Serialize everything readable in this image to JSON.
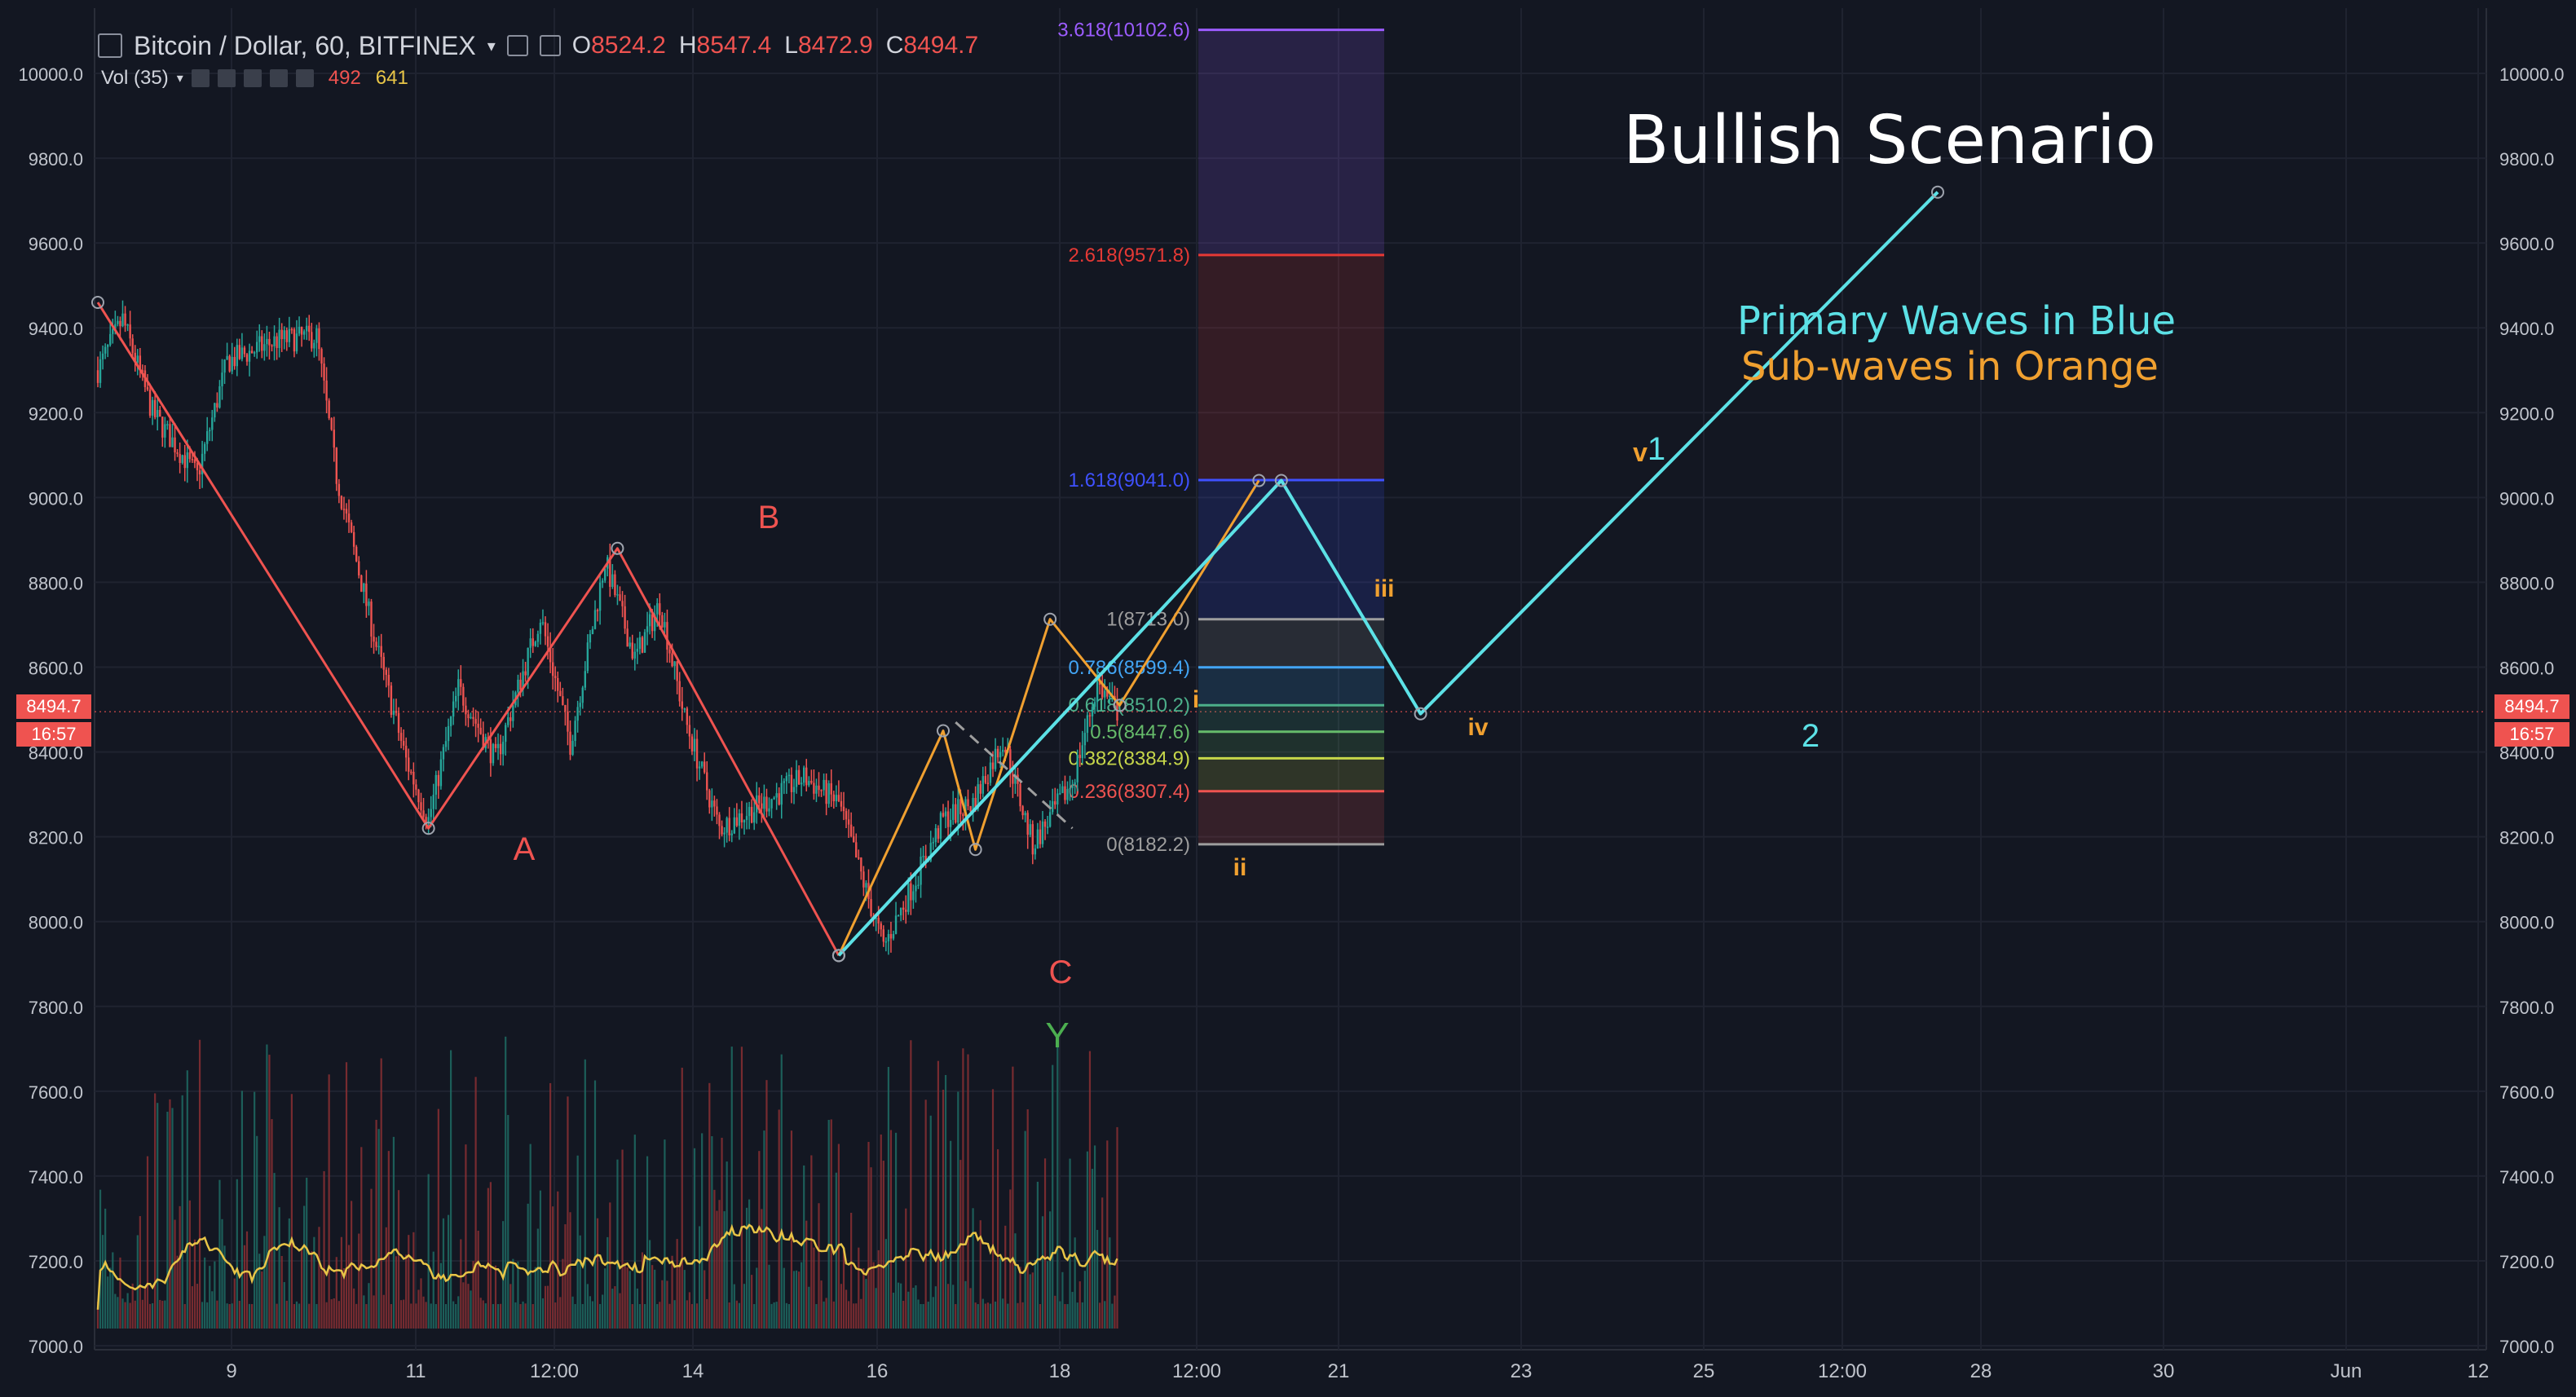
{
  "header": {
    "symbol": "Bitcoin / Dollar, 60, BITFINEX",
    "dropdown_icon": "chevron-down-icon",
    "open_label": "O",
    "open": "8524.2",
    "high_label": "H",
    "high": "8547.4",
    "low_label": "L",
    "low": "8472.9",
    "close_label": "C",
    "close": "8494.7",
    "volume_label": "Vol (35)",
    "volume_value": "492",
    "volume_ma": "641"
  },
  "price_tag": {
    "price": "8494.7",
    "countdown": "16:57"
  },
  "annotations": {
    "title": "Bullish Scenario",
    "primary_note": "Primary Waves in Blue",
    "sub_note": "Sub-waves in Orange",
    "wave_A": "A",
    "wave_B": "B",
    "wave_C": "C",
    "wave_Y": "Y",
    "wave_i": "i",
    "wave_ii": "ii",
    "wave_iii": "iii",
    "wave_iv": "iv",
    "wave_v": "v",
    "wave_1": "1",
    "wave_2": "2"
  },
  "colors": {
    "background": "#131722",
    "grid": "#2a2e39",
    "up": "#26a69a",
    "down": "#ef5350",
    "primary_wave": "#5ce1e6",
    "sub_wave": "#f0a030",
    "correction": "#ef5350",
    "volume_ma": "#e8c547",
    "text": "#d1d4dc"
  },
  "chart_data": {
    "type": "candlestick",
    "y_axis": {
      "range": [
        6960,
        10100
      ],
      "ticks": [
        "7000.0",
        "7200.0",
        "7400.0",
        "7600.0",
        "7800.0",
        "8000.0",
        "8200.0",
        "8400.0",
        "8600.0",
        "8800.0",
        "9000.0",
        "9200.0",
        "9400.0",
        "9600.0",
        "9800.0",
        "10000.0"
      ]
    },
    "x_axis": {
      "ticks": [
        "9",
        "11",
        "12:00",
        "14",
        "16",
        "18",
        "12:00",
        "21",
        "23",
        "25",
        "12:00",
        "28",
        "30",
        "Jun",
        "12"
      ]
    },
    "price_anchors": [
      {
        "t": 0,
        "p": 9300
      },
      {
        "t": 10,
        "p": 9420
      },
      {
        "t": 22,
        "p": 9200
      },
      {
        "t": 40,
        "p": 9050
      },
      {
        "t": 52,
        "p": 9320
      },
      {
        "t": 72,
        "p": 9370
      },
      {
        "t": 88,
        "p": 9380
      },
      {
        "t": 96,
        "p": 9050
      },
      {
        "t": 112,
        "p": 8650
      },
      {
        "t": 124,
        "p": 8380
      },
      {
        "t": 133,
        "p": 8240
      },
      {
        "t": 145,
        "p": 8550
      },
      {
        "t": 160,
        "p": 8380
      },
      {
        "t": 178,
        "p": 8720
      },
      {
        "t": 190,
        "p": 8420
      },
      {
        "t": 204,
        "p": 8850
      },
      {
        "t": 216,
        "p": 8620
      },
      {
        "t": 226,
        "p": 8750
      },
      {
        "t": 236,
        "p": 8480
      },
      {
        "t": 250,
        "p": 8220
      },
      {
        "t": 268,
        "p": 8280
      },
      {
        "t": 284,
        "p": 8340
      },
      {
        "t": 298,
        "p": 8280
      },
      {
        "t": 316,
        "p": 7940
      },
      {
        "t": 340,
        "p": 8240
      },
      {
        "t": 352,
        "p": 8280
      },
      {
        "t": 364,
        "p": 8430
      },
      {
        "t": 376,
        "p": 8180
      },
      {
        "t": 392,
        "p": 8330
      },
      {
        "t": 402,
        "p": 8560
      },
      {
        "t": 410,
        "p": 8495
      }
    ],
    "fibonacci": [
      {
        "label": "0(8182.2)",
        "ratio": "0",
        "value": 8182.2,
        "color": "#9e9e9e"
      },
      {
        "label": "0.236(8307.4)",
        "ratio": "0.236",
        "value": 8307.4,
        "color": "#ef5350"
      },
      {
        "label": "0.382(8384.9)",
        "ratio": "0.382",
        "value": 8384.9,
        "color": "#c6d64a"
      },
      {
        "label": "0.5(8447.6)",
        "ratio": "0.5",
        "value": 8447.6,
        "color": "#66bb6a"
      },
      {
        "label": "0.618(8510.2)",
        "ratio": "0.618",
        "value": 8510.2,
        "color": "#4caf8a"
      },
      {
        "label": "0.786(8599.4)",
        "ratio": "0.786",
        "value": 8599.4,
        "color": "#42a5f5"
      },
      {
        "label": "1(8713.0)",
        "ratio": "1",
        "value": 8713.0,
        "color": "#9e9e9e"
      },
      {
        "label": "1.618(9041.0)",
        "ratio": "1.618",
        "value": 9041.0,
        "color": "#3f51ff"
      },
      {
        "label": "2.618(9571.8)",
        "ratio": "2.618",
        "value": 9571.8,
        "color": "#e53935"
      },
      {
        "label": "3.618(10102.6)",
        "ratio": "3.618",
        "value": 10102.6,
        "color": "#9c5cff"
      }
    ],
    "correction_path": [
      {
        "t": 0,
        "p": 9460
      },
      {
        "t": 133,
        "p": 8220
      },
      {
        "t": 209,
        "p": 8880
      },
      {
        "t": 298,
        "p": 7920
      }
    ],
    "primary_path": [
      {
        "t": 298,
        "p": 7920
      },
      {
        "t": 476,
        "p": 9040
      },
      {
        "t": 532,
        "p": 8490
      },
      {
        "t": 740,
        "p": 9720
      }
    ],
    "sub_path": [
      {
        "t": 298,
        "p": 7920
      },
      {
        "t": 340,
        "p": 8450
      },
      {
        "t": 353,
        "p": 8170
      },
      {
        "t": 383,
        "p": 8713
      },
      {
        "t": 411,
        "p": 8510
      },
      {
        "t": 467,
        "p": 9040
      }
    ]
  }
}
